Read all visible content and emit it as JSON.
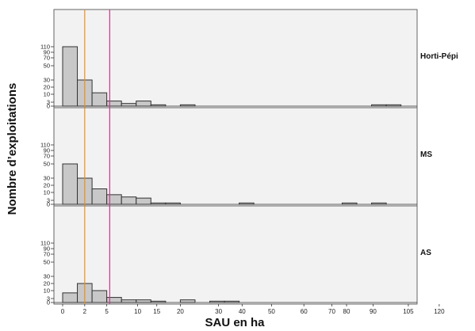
{
  "chart_data": {
    "type": "bar",
    "subtype": "faceted-histogram",
    "xlabel": "SAU en ha",
    "ylabel": "Nombre d’exploitations",
    "x_tick_labels": [
      "0",
      "2",
      "5",
      "10",
      "15",
      "20",
      "30",
      "40",
      "50",
      "60",
      "70",
      "80",
      "90",
      "105",
      "120"
    ],
    "y_tick_labels": [
      "0",
      "3",
      "10",
      "20",
      "30",
      "50",
      "70",
      "90",
      "110"
    ],
    "y_scale": "compressed (non-linear tick spacing)",
    "ylim": [
      0,
      120
    ],
    "grid": false,
    "colors": {
      "bar_fill": "#c8c8c8",
      "bar_stroke": "#333333",
      "panel_background": "#f2f2f2",
      "line_1": "#e8901e",
      "line_2": "#c8388c"
    },
    "reference_lines": [
      {
        "x_position": 1.5,
        "color": "#e8901e"
      },
      {
        "x_position": 3.2,
        "color": "#c8388c"
      }
    ],
    "panels": [
      {
        "label": "Horti-Pépi",
        "bars": [
          {
            "bin": 0,
            "value": 110
          },
          {
            "bin": 1,
            "value": 30
          },
          {
            "bin": 2,
            "value": 12
          },
          {
            "bin": 3,
            "value": 4
          },
          {
            "bin": 4,
            "value": 2
          },
          {
            "bin": 5,
            "value": 4
          },
          {
            "bin": 6,
            "value": 1
          },
          {
            "bin": 8,
            "value": 1
          },
          {
            "bin": 21,
            "value": 1
          },
          {
            "bin": 22,
            "value": 1
          }
        ]
      },
      {
        "label": "MS",
        "bars": [
          {
            "bin": 0,
            "value": 50
          },
          {
            "bin": 1,
            "value": 30
          },
          {
            "bin": 2,
            "value": 15
          },
          {
            "bin": 3,
            "value": 8
          },
          {
            "bin": 4,
            "value": 6
          },
          {
            "bin": 5,
            "value": 5
          },
          {
            "bin": 6,
            "value": 1
          },
          {
            "bin": 7,
            "value": 1
          },
          {
            "bin": 12,
            "value": 1
          },
          {
            "bin": 19,
            "value": 1
          },
          {
            "bin": 21,
            "value": 1
          }
        ]
      },
      {
        "label": "AS",
        "bars": [
          {
            "bin": 0,
            "value": 8
          },
          {
            "bin": 1,
            "value": 20
          },
          {
            "bin": 2,
            "value": 10
          },
          {
            "bin": 3,
            "value": 4
          },
          {
            "bin": 4,
            "value": 2
          },
          {
            "bin": 5,
            "value": 2
          },
          {
            "bin": 6,
            "value": 1
          },
          {
            "bin": 8,
            "value": 2
          },
          {
            "bin": 10,
            "value": 1
          },
          {
            "bin": 11,
            "value": 1
          }
        ]
      }
    ]
  }
}
